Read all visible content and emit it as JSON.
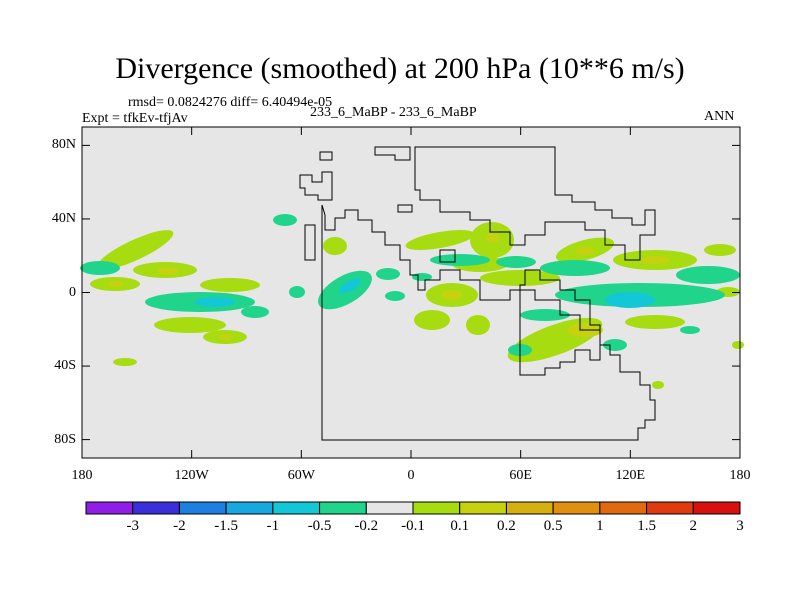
{
  "chart_data": {
    "type": "heatmap",
    "title": "Divergence (smoothed) at 200 hPa (10**6 m/s)",
    "stats_line": "rmsd= 0.0824276 diff= 6.40494e-05",
    "expt_label": "Expt = tfkEv-tfjAv",
    "case_label": "233_6_MaBP - 233_6_MaBP",
    "season_label": "ANN",
    "x_ticks": [
      "180",
      "120W",
      "60W",
      "0",
      "60E",
      "120E",
      "180"
    ],
    "x_tick_values": [
      -180,
      -120,
      -60,
      0,
      60,
      120,
      180
    ],
    "y_ticks": [
      "80N",
      "40N",
      "0",
      "40S",
      "80S"
    ],
    "y_tick_values": [
      80,
      40,
      0,
      -40,
      -80
    ],
    "xlim": [
      -180,
      180
    ],
    "ylim": [
      -90,
      90
    ],
    "colorbar": {
      "levels": [
        "-3",
        "-2",
        "-1.5",
        "-1",
        "-0.5",
        "-0.2",
        "-0.1",
        "0.1",
        "0.2",
        "0.5",
        "1",
        "1.5",
        "2",
        "3"
      ],
      "colors": [
        "#8f1fe6",
        "#3b2fd9",
        "#1d7fe0",
        "#17a8e0",
        "#13c7d6",
        "#20d48c",
        "#e6e6e6",
        "#a6dc10",
        "#c6d210",
        "#d6b010",
        "#e09010",
        "#e06a10",
        "#e03a10",
        "#d81010"
      ]
    },
    "background_color": "#e6e6e6",
    "contour_color": "#000000"
  }
}
